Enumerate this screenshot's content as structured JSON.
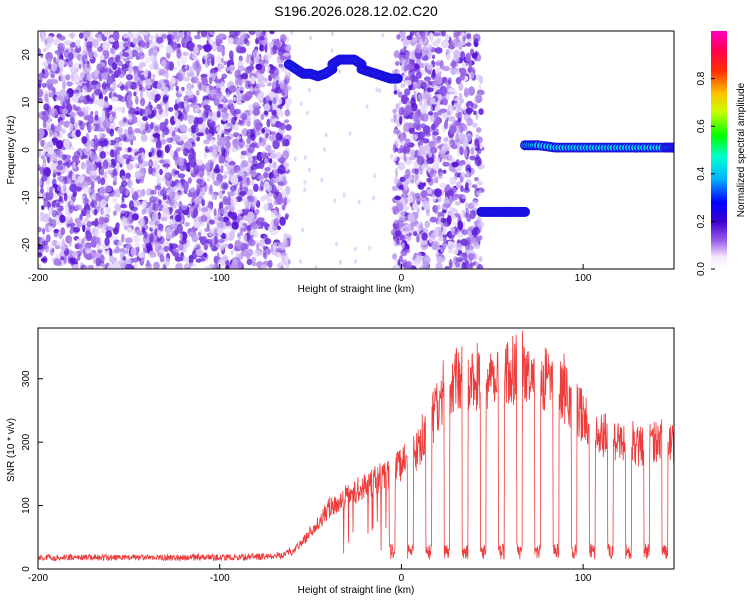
{
  "title": "S196.2026.028.12.02.C20",
  "chart_data": [
    {
      "type": "heatmap",
      "title": "S196.2026.028.12.02.C20",
      "xlabel": "Height of straight line (km)",
      "ylabel": "Frequency (Hz)",
      "xlim": [
        -200,
        150
      ],
      "ylim": [
        -25,
        25
      ],
      "xticks": [
        -200,
        -100,
        0,
        100
      ],
      "xtick_labels": [
        "-200",
        "-100",
        "0",
        "100"
      ],
      "yticks": [
        -20,
        -10,
        0,
        10,
        20
      ],
      "ytick_labels": [
        "-20",
        "-10",
        "0",
        "10",
        "20"
      ],
      "colorbar": {
        "label": "Normalized spectral amplitude",
        "range": [
          0,
          1
        ],
        "ticks": [
          0.0,
          0.2,
          0.4,
          0.6,
          0.8
        ],
        "tick_labels": [
          "0.0",
          "0.2",
          "0.4",
          "0.6",
          "0.8"
        ],
        "colormap": [
          "#ffffff",
          "#dcc8f5",
          "#7a3ee0",
          "#3a00d0",
          "#0000ff",
          "#00b4ff",
          "#00ffc0",
          "#00ff00",
          "#ffff00",
          "#ff8000",
          "#ff0000",
          "#ff00ff"
        ]
      },
      "noise_regions": [
        {
          "x": [
            -200,
            -62
          ],
          "y": [
            -25,
            25
          ],
          "level": 0.12
        },
        {
          "x": [
            -4,
            44
          ],
          "y": [
            -25,
            25
          ],
          "level": 0.1
        }
      ],
      "tracks": [
        {
          "x": [
            -62,
            -58,
            -54,
            -50,
            -46,
            -42,
            -38
          ],
          "y": [
            18,
            17,
            16,
            16,
            15.5,
            16,
            17
          ],
          "amplitude": 0.6
        },
        {
          "x": [
            -38,
            -34,
            -30,
            -26,
            -22
          ],
          "y": [
            18,
            19,
            19,
            19,
            18
          ],
          "amplitude": 0.85
        },
        {
          "x": [
            -22,
            -18,
            -14,
            -10,
            -6,
            -2
          ],
          "y": [
            17,
            16.5,
            16,
            15.5,
            15,
            15
          ],
          "amplitude": 0.8
        },
        {
          "x": [
            44,
            48,
            52,
            56,
            60,
            64,
            68
          ],
          "y": [
            -13,
            -13,
            -13,
            -13,
            -13,
            -13,
            -13
          ],
          "amplitude": 0.85
        },
        {
          "x": [
            68,
            75,
            85,
            95,
            105,
            115,
            125,
            135,
            145,
            150
          ],
          "y": [
            1,
            1,
            0.5,
            0.5,
            0.5,
            0.5,
            0.5,
            0.5,
            0.5,
            0.5
          ],
          "amplitude": 0.6
        }
      ]
    },
    {
      "type": "line",
      "xlabel": "Height of straight line (km)",
      "ylabel": "SNR (10 * v/v)",
      "xlim": [
        -200,
        150
      ],
      "ylim": [
        0,
        380
      ],
      "xticks": [
        -200,
        -100,
        0,
        100
      ],
      "xtick_labels": [
        "-200",
        "-100",
        "0",
        "100"
      ],
      "yticks": [
        0,
        100,
        200,
        300
      ],
      "ytick_labels": [
        "0",
        "100",
        "200",
        "300"
      ],
      "color": "#ee3b3b",
      "envelope": {
        "x": [
          -200,
          -150,
          -100,
          -70,
          -60,
          -50,
          -40,
          -30,
          -20,
          -10,
          0,
          10,
          20,
          30,
          40,
          50,
          60,
          70,
          80,
          90,
          100,
          110,
          120,
          130,
          140,
          150
        ],
        "y": [
          18,
          18,
          18,
          20,
          28,
          55,
          95,
          115,
          130,
          145,
          165,
          190,
          255,
          300,
          300,
          305,
          315,
          305,
          300,
          275,
          240,
          215,
          200,
          195,
          195,
          195
        ]
      },
      "dips": [
        -5,
        5,
        15,
        25,
        35,
        45,
        55,
        65,
        75,
        85,
        95,
        105,
        115,
        125,
        135,
        145
      ]
    }
  ]
}
